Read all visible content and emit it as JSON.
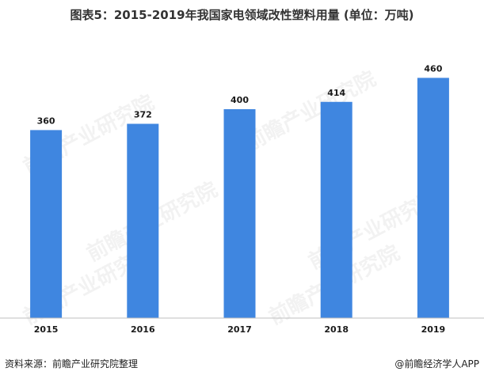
{
  "title": "图表5：2015-2019年我国家电领域改性塑料用量 (单位：万吨)",
  "watermark_text": "前瞻产业研究院",
  "footer": {
    "source": "资料来源：前瞻产业研究院整理",
    "credit": "@前瞻经济学人APP"
  },
  "colors": {
    "bar": "#3f86e0",
    "axis": "#bfbfbf"
  },
  "chart_data": {
    "type": "bar",
    "title": "图表5：2015-2019年我国家电领域改性塑料用量 (单位：万吨)",
    "categories": [
      "2015",
      "2016",
      "2017",
      "2018",
      "2019"
    ],
    "values": [
      360,
      372,
      400,
      414,
      460
    ],
    "xlabel": "",
    "ylabel": "",
    "ylim": [
      0,
      500
    ],
    "grid": false,
    "legend": "none"
  }
}
